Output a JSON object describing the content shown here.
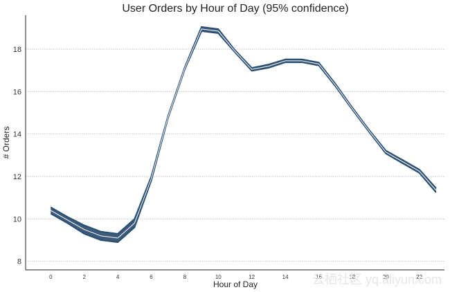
{
  "chart_data": {
    "type": "line",
    "title": "User Orders by Hour of Day (95% confidence)",
    "xlabel": "Hour of Day",
    "ylabel": "# Orders",
    "xlim": [
      -1.5,
      23.5
    ],
    "ylim": [
      7.6,
      19.6
    ],
    "xticks": [
      0,
      2,
      4,
      6,
      8,
      10,
      12,
      14,
      16,
      18,
      20,
      22
    ],
    "yticks": [
      8,
      10,
      12,
      14,
      16,
      18
    ],
    "grid": "horizontal-dotted",
    "x": [
      0,
      1,
      2,
      3,
      4,
      5,
      6,
      7,
      8,
      9,
      10,
      11,
      12,
      13,
      14,
      15,
      16,
      17,
      18,
      19,
      20,
      21,
      22,
      23
    ],
    "series": [
      {
        "role": "mean",
        "values": [
          10.4,
          9.95,
          9.5,
          9.2,
          9.1,
          9.8,
          11.9,
          14.8,
          17.1,
          18.95,
          18.85,
          17.9,
          17.05,
          17.2,
          17.45,
          17.45,
          17.3,
          16.3,
          15.2,
          14.15,
          13.15,
          12.7,
          12.25,
          11.35
        ]
      },
      {
        "role": "upper",
        "values": [
          10.55,
          10.1,
          9.7,
          9.4,
          9.3,
          10.0,
          12.0,
          14.85,
          17.15,
          19.05,
          18.95,
          17.95,
          17.12,
          17.28,
          17.52,
          17.52,
          17.37,
          16.36,
          15.25,
          14.2,
          13.22,
          12.78,
          12.33,
          11.45
        ]
      },
      {
        "role": "lower",
        "values": [
          10.25,
          9.8,
          9.3,
          9.0,
          8.9,
          9.6,
          11.8,
          14.75,
          17.05,
          18.85,
          18.75,
          17.85,
          16.98,
          17.12,
          17.38,
          17.38,
          17.23,
          16.24,
          15.15,
          14.1,
          13.08,
          12.62,
          12.17,
          11.25
        ]
      }
    ],
    "line_color": "#2b4f72",
    "band_color": "#3d5a7a",
    "watermark": "云栖社区 yq.aliyun.com"
  }
}
